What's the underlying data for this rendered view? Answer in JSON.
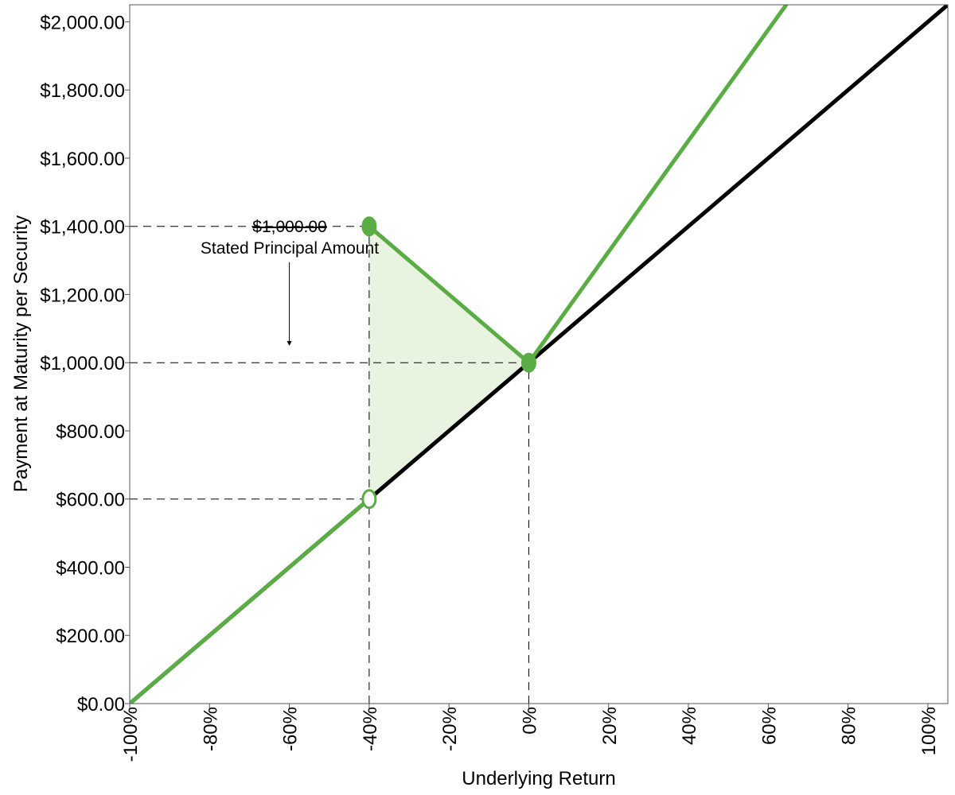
{
  "chart_data": {
    "type": "line",
    "title": "",
    "xlabel": "Underlying Return",
    "ylabel": "Payment at Maturity per Security",
    "xlim": [
      -100,
      105
    ],
    "ylim": [
      0,
      2050
    ],
    "x_ticks": [
      -100,
      -80,
      -60,
      -40,
      -20,
      0,
      20,
      40,
      60,
      80,
      100
    ],
    "x_tick_labels": [
      "-100%",
      "-80%",
      "-60%",
      "-40%",
      "-20%",
      "0%",
      "20%",
      "40%",
      "60%",
      "80%",
      "100%"
    ],
    "y_ticks": [
      0,
      200,
      400,
      600,
      800,
      1000,
      1200,
      1400,
      1600,
      1800,
      2000
    ],
    "y_tick_labels": [
      "$0.00",
      "$200.00",
      "$400.00",
      "$600.00",
      "$800.00",
      "$1,000.00",
      "$1,200.00",
      "$1,400.00",
      "$1,600.00",
      "$1,800.00",
      "$2,000.00"
    ],
    "grid": false,
    "legend": "none",
    "series": [
      {
        "color": "#000000",
        "segments": [
          [
            [
              -100,
              0
            ],
            [
              105,
              2050
            ]
          ]
        ]
      },
      {
        "color": "#5aac44",
        "segments": [
          [
            [
              -100,
              0
            ],
            [
              -40,
              600
            ]
          ],
          [
            [
              -40,
              1400
            ],
            [
              0,
              1000
            ],
            [
              64.5,
              2050
            ]
          ]
        ],
        "markers": [
          {
            "x": -40,
            "y": 1400,
            "style": "filled"
          },
          {
            "x": -40,
            "y": 600,
            "style": "open"
          },
          {
            "x": 0,
            "y": 1000,
            "style": "filled"
          }
        ]
      }
    ],
    "shaded_region": {
      "color": "#e8f3e0",
      "points": [
        [
          -40,
          600
        ],
        [
          -40,
          1400
        ],
        [
          0,
          1000
        ]
      ]
    },
    "reference_lines": {
      "horizontal": [
        {
          "y": 1400,
          "x_to": -40
        },
        {
          "y": 1000,
          "x_to": 0
        },
        {
          "y": 600,
          "x_to": -40
        }
      ],
      "vertical": [
        {
          "x": -40,
          "y_to": 1400
        },
        {
          "x": 0,
          "y_to": 1000
        }
      ]
    },
    "annotation": {
      "line1": "$1,000.00",
      "line2": "Stated Principal Amount",
      "arrow_points_to": {
        "x": -60,
        "y": 1000
      }
    }
  }
}
